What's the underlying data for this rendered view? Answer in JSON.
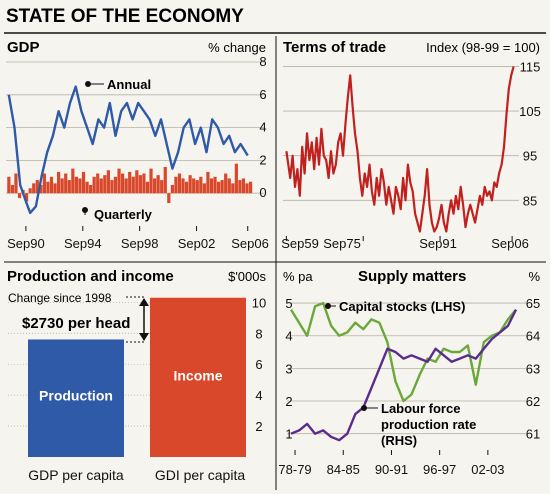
{
  "page_title": "STATE OF THE ECONOMY",
  "colors": {
    "blue": "#2f5aa8",
    "red": "#d9482b",
    "dark_red": "#c0211f",
    "purple": "#5a2d8c",
    "green": "#6aa83a",
    "bg": "#f6f4ee",
    "grid": "#b9b2a4"
  },
  "chart_data": [
    {
      "type": "line",
      "title": "GDP",
      "unit_label": "% change",
      "x_tick_labels": [
        "Sep90",
        "Sep94",
        "Sep98",
        "Sep02",
        "Sep06"
      ],
      "y_ticks": [
        "8",
        "6",
        "4",
        "2",
        "0"
      ],
      "ylim": [
        -2,
        8
      ],
      "annotations": [
        "Annual",
        "Quarterly"
      ],
      "series": [
        {
          "name": "Annual",
          "type": "line",
          "color": "#2f5aa8",
          "x": [
            1989.5,
            1989.9,
            1990.3,
            1990.7,
            1991.0,
            1991.4,
            1991.8,
            1992.2,
            1992.6,
            1993.0,
            1993.4,
            1993.8,
            1994.2,
            1994.6,
            1995.0,
            1995.4,
            1995.8,
            1996.2,
            1996.6,
            1997.0,
            1997.4,
            1997.8,
            1998.2,
            1998.6,
            1999.0,
            1999.4,
            1999.8,
            2000.2,
            2000.6,
            2001.0,
            2001.4,
            2001.8,
            2002.2,
            2002.6,
            2003.0,
            2003.4,
            2003.8,
            2004.2,
            2004.6,
            2005.0,
            2005.4,
            2005.8,
            2006.3
          ],
          "y": [
            6.0,
            4.0,
            0.5,
            -0.5,
            -1.2,
            -0.8,
            1.0,
            2.5,
            3.5,
            5.0,
            4.0,
            5.5,
            6.5,
            5.0,
            4.0,
            3.0,
            4.5,
            4.0,
            5.5,
            3.5,
            5.0,
            5.5,
            4.5,
            5.5,
            5.0,
            4.5,
            3.5,
            4.5,
            3.0,
            1.5,
            2.5,
            4.0,
            4.5,
            3.0,
            4.0,
            2.5,
            4.5,
            4.0,
            3.0,
            3.5,
            2.5,
            3.0,
            2.3
          ]
        },
        {
          "name": "Quarterly",
          "type": "bar",
          "color": "#d9482b",
          "x": [
            1989.5,
            1989.75,
            1990.0,
            1990.25,
            1990.5,
            1990.75,
            1991.0,
            1991.25,
            1991.5,
            1991.75,
            1992.0,
            1992.25,
            1992.5,
            1992.75,
            1993.0,
            1993.25,
            1993.5,
            1993.75,
            1994.0,
            1994.25,
            1994.5,
            1994.75,
            1995.0,
            1995.25,
            1995.5,
            1995.75,
            1996.0,
            1996.25,
            1996.5,
            1996.75,
            1997.0,
            1997.25,
            1997.5,
            1997.75,
            1998.0,
            1998.25,
            1998.5,
            1998.75,
            1999.0,
            1999.25,
            1999.5,
            1999.75,
            2000.0,
            2000.25,
            2000.5,
            2000.75,
            2001.0,
            2001.25,
            2001.5,
            2001.75,
            2002.0,
            2002.25,
            2002.5,
            2002.75,
            2003.0,
            2003.25,
            2003.5,
            2003.75,
            2004.0,
            2004.25,
            2004.5,
            2004.75,
            2005.0,
            2005.25,
            2005.5,
            2005.75,
            2006.0,
            2006.25,
            2006.5
          ],
          "y": [
            1.0,
            0.5,
            1.2,
            -0.3,
            0.2,
            -0.5,
            0.3,
            0.6,
            0.8,
            0.5,
            1.2,
            0.7,
            1.0,
            0.6,
            1.3,
            0.9,
            1.2,
            0.8,
            1.5,
            1.0,
            0.9,
            1.3,
            0.7,
            0.5,
            1.0,
            1.2,
            0.9,
            1.1,
            1.4,
            0.8,
            1.0,
            1.5,
            1.2,
            0.9,
            1.3,
            1.0,
            1.4,
            1.1,
            1.2,
            0.7,
            1.5,
            0.9,
            1.1,
            0.8,
            1.6,
            -0.6,
            0.5,
            1.0,
            1.2,
            0.9,
            0.7,
            1.1,
            0.9,
            0.8,
            1.0,
            0.6,
            1.3,
            0.9,
            1.0,
            0.7,
            0.8,
            1.2,
            0.9,
            0.6,
            1.8,
            0.8,
            0.9,
            0.6,
            0.7
          ]
        }
      ]
    },
    {
      "type": "line",
      "title": "Terms of trade",
      "unit_label": "Index (98-99 = 100)",
      "x_tick_labels": [
        "Sep59",
        "Sep75",
        "Sep91",
        "Sep06"
      ],
      "y_ticks": [
        "115",
        "105",
        "95",
        "85"
      ],
      "ylim": [
        77,
        116
      ],
      "series": [
        {
          "color": "#c0211f",
          "x": [
            1959.7,
            1960.5,
            1961.0,
            1961.5,
            1962.0,
            1962.5,
            1963.0,
            1963.5,
            1964.0,
            1964.5,
            1965.0,
            1965.5,
            1966.0,
            1966.5,
            1967.0,
            1967.5,
            1968.0,
            1968.5,
            1969.0,
            1969.5,
            1970.0,
            1970.5,
            1971.0,
            1971.5,
            1972.0,
            1972.5,
            1973.0,
            1973.5,
            1974.0,
            1974.5,
            1975.0,
            1975.5,
            1976.0,
            1976.5,
            1977.0,
            1977.5,
            1978.0,
            1978.5,
            1979.0,
            1979.5,
            1980.0,
            1980.5,
            1981.0,
            1981.5,
            1982.0,
            1982.5,
            1983.0,
            1983.5,
            1984.0,
            1984.5,
            1985.0,
            1985.5,
            1986.0,
            1986.5,
            1987.0,
            1987.5,
            1988.0,
            1988.5,
            1989.0,
            1989.5,
            1990.0,
            1990.5,
            1991.0,
            1991.5,
            1992.0,
            1992.5,
            1993.0,
            1993.5,
            1994.0,
            1994.5,
            1995.0,
            1995.5,
            1996.0,
            1996.5,
            1997.0,
            1997.5,
            1998.0,
            1998.5,
            1999.0,
            1999.5,
            2000.0,
            2000.5,
            2001.0,
            2001.5,
            2002.0,
            2002.5,
            2003.0,
            2003.5,
            2004.0,
            2004.5,
            2005.0,
            2005.5,
            2006.0,
            2006.5,
            2007.0
          ],
          "y": [
            96,
            90,
            95,
            88,
            92,
            86,
            97,
            91,
            100,
            94,
            98,
            92,
            99,
            93,
            101,
            95,
            94,
            90,
            96,
            91,
            93,
            98,
            100,
            95,
            102,
            108,
            113,
            106,
            100,
            96,
            90,
            86,
            91,
            88,
            93,
            87,
            84,
            90,
            86,
            92,
            89,
            84,
            88,
            85,
            82,
            88,
            86,
            83,
            90,
            85,
            93,
            89,
            87,
            82,
            80,
            78,
            82,
            86,
            92,
            84,
            80,
            78,
            79,
            81,
            84,
            80,
            78,
            82,
            85,
            82,
            86,
            83,
            88,
            84,
            79,
            82,
            84,
            82,
            80,
            83,
            86,
            84,
            88,
            86,
            87,
            85,
            89,
            88,
            91,
            93,
            97,
            104,
            110,
            113,
            115
          ]
        }
      ]
    },
    {
      "type": "bar",
      "title": "Production and income",
      "unit_label": "$'000s",
      "subtitle": "Change since 1998",
      "annotation": "$2730 per head",
      "categories": [
        "GDP per capita",
        "GDI per capita"
      ],
      "bar_labels": [
        "Production",
        "Income"
      ],
      "values": [
        7.6,
        10.3
      ],
      "y_ticks": [
        "10",
        "8",
        "6",
        "4",
        "2"
      ],
      "ylim": [
        0,
        10.8
      ],
      "colors": [
        "#2f5aa8",
        "#d9482b"
      ]
    },
    {
      "type": "line",
      "title": "Supply matters",
      "unit_label_left": "% pa",
      "unit_label_right": "%",
      "x_tick_labels": [
        "78-79",
        "84-85",
        "90-91",
        "96-97",
        "02-03"
      ],
      "y_ticks_left": [
        "5",
        "4",
        "3",
        "2",
        "1"
      ],
      "y_ticks_right": [
        "65",
        "64",
        "63",
        "62",
        "61"
      ],
      "ylim_left": [
        0.5,
        5.4
      ],
      "ylim_right": [
        60.5,
        65.4
      ],
      "series": [
        {
          "name": "Capital stocks (LHS)",
          "axis": "left",
          "color": "#6aa83a",
          "x": [
            1978,
            1979,
            1980,
            1981,
            1982,
            1983,
            1984,
            1985,
            1986,
            1987,
            1988,
            1989,
            1990,
            1991,
            1992,
            1993,
            1994,
            1995,
            1996,
            1997,
            1998,
            1999,
            2000,
            2001,
            2002,
            2003,
            2004,
            2005,
            2006
          ],
          "y": [
            4.8,
            4.4,
            4.0,
            4.9,
            5.0,
            4.3,
            4.0,
            4.1,
            4.4,
            4.2,
            4.5,
            4.4,
            3.8,
            2.6,
            2.0,
            2.2,
            2.8,
            3.3,
            3.2,
            3.6,
            3.5,
            3.5,
            3.7,
            2.5,
            3.8,
            4.0,
            4.1,
            4.5,
            4.8
          ]
        },
        {
          "name": "Labour force production rate (RHS)",
          "axis": "right",
          "color": "#5a2d8c",
          "x": [
            1978,
            1979,
            1980,
            1981,
            1982,
            1983,
            1984,
            1985,
            1986,
            1987,
            1988,
            1989,
            1990,
            1991,
            1992,
            1993,
            1994,
            1995,
            1996,
            1997,
            1998,
            1999,
            2000,
            2001,
            2002,
            2003,
            2004,
            2005,
            2006
          ],
          "y": [
            61.0,
            61.1,
            61.3,
            61.0,
            61.1,
            60.9,
            60.8,
            61.0,
            61.6,
            61.8,
            62.4,
            63.0,
            63.6,
            63.5,
            63.3,
            63.4,
            63.3,
            63.2,
            63.6,
            63.4,
            63.2,
            63.3,
            63.4,
            63.3,
            63.6,
            63.9,
            64.1,
            64.3,
            64.8
          ]
        }
      ]
    }
  ]
}
